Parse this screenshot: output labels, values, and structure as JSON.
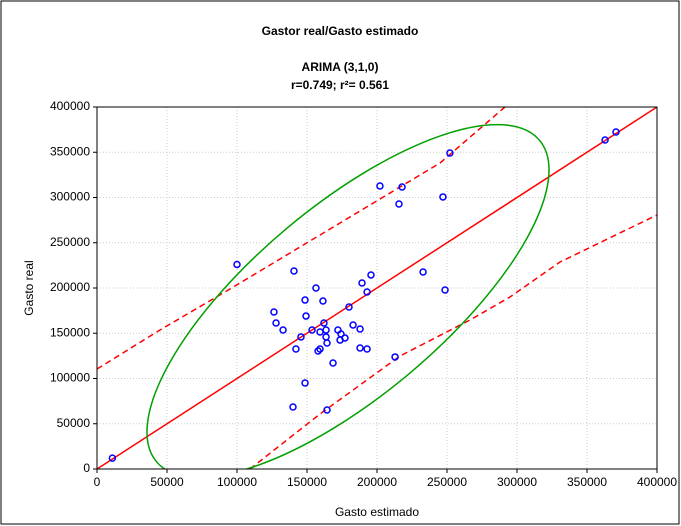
{
  "chart_data": {
    "type": "scatter",
    "title": "Gastor real/Gasto estimado",
    "subtitle": "ARIMA (3,1,0)",
    "stats": "r=0.749; r²= 0.561",
    "x_label": "Gasto estimado",
    "y_label": "Gasto real",
    "color": "#0000ff",
    "x": [
      11000,
      100000,
      140700,
      126400,
      127900,
      132900,
      149300,
      148600,
      156400,
      161400,
      162100,
      142100,
      145700,
      153600,
      159300,
      157900,
      159300,
      163600,
      164300,
      163600,
      168600,
      148600,
      140000,
      164300,
      172100,
      174300,
      173600,
      177100,
      180000,
      182900,
      187900,
      187900,
      192900,
      189300,
      192900,
      195700,
      202100,
      217900,
      215700,
      212900,
      232900,
      247100,
      248600,
      252100,
      362900,
      370700
    ],
    "values": [
      12000,
      226000,
      218800,
      173500,
      161300,
      153600,
      169000,
      186700,
      200000,
      185600,
      161300,
      132600,
      145900,
      153600,
      151400,
      130400,
      132600,
      145900,
      139200,
      153600,
      117100,
      95000,
      68500,
      65200,
      153600,
      149200,
      142500,
      144800,
      179000,
      159100,
      154700,
      133700,
      132600,
      205500,
      195600,
      214400,
      312700,
      311600,
      292800,
      123800,
      217700,
      300600,
      197800,
      349200,
      363500,
      372400
    ],
    "xlim": [
      0,
      400000
    ],
    "ylim": [
      0,
      400000
    ],
    "xticks": [
      0,
      50000,
      100000,
      150000,
      200000,
      250000,
      300000,
      350000,
      400000
    ],
    "yticks": [
      0,
      50000,
      100000,
      150000,
      200000,
      250000,
      300000,
      350000,
      400000
    ],
    "grid": true
  }
}
